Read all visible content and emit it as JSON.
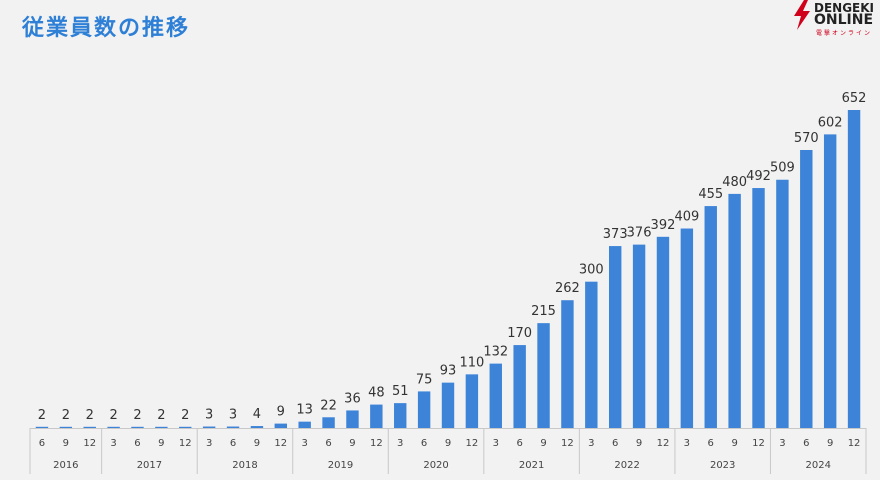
{
  "header": {
    "title": "従業員数の推移",
    "logo_line1": "DENGEKI",
    "logo_line2": "ONLINE",
    "logo_line3": "電撃オンライン"
  },
  "colors": {
    "bar": "#3d84d9",
    "title": "#2e7fd6",
    "background": "#f2f2f2",
    "logo_red": "#d0021b"
  },
  "chart_data": {
    "type": "bar",
    "title": "従業員数の推移",
    "xlabel": "",
    "ylabel": "",
    "ylim": [
      0,
      700
    ],
    "months": [
      "6",
      "9",
      "12",
      "3",
      "6",
      "9",
      "12",
      "3",
      "6",
      "9",
      "12",
      "3",
      "6",
      "9",
      "12",
      "3",
      "6",
      "9",
      "12",
      "3",
      "6",
      "9",
      "12",
      "3",
      "6",
      "9",
      "12",
      "3",
      "6",
      "9",
      "12",
      "3",
      "6",
      "9",
      "12"
    ],
    "values": [
      2,
      2,
      2,
      2,
      2,
      2,
      2,
      3,
      3,
      4,
      9,
      13,
      22,
      36,
      48,
      51,
      75,
      93,
      110,
      132,
      170,
      215,
      262,
      300,
      373,
      376,
      392,
      409,
      455,
      480,
      492,
      509,
      570,
      602,
      652
    ],
    "years": [
      {
        "label": "2016",
        "start": 0,
        "count": 3
      },
      {
        "label": "2017",
        "start": 3,
        "count": 4
      },
      {
        "label": "2018",
        "start": 7,
        "count": 4
      },
      {
        "label": "2019",
        "start": 11,
        "count": 4
      },
      {
        "label": "2020",
        "start": 15,
        "count": 4
      },
      {
        "label": "2021",
        "start": 19,
        "count": 4
      },
      {
        "label": "2022",
        "start": 23,
        "count": 4
      },
      {
        "label": "2023",
        "start": 27,
        "count": 4
      },
      {
        "label": "2024",
        "start": 31,
        "count": 4
      }
    ]
  }
}
